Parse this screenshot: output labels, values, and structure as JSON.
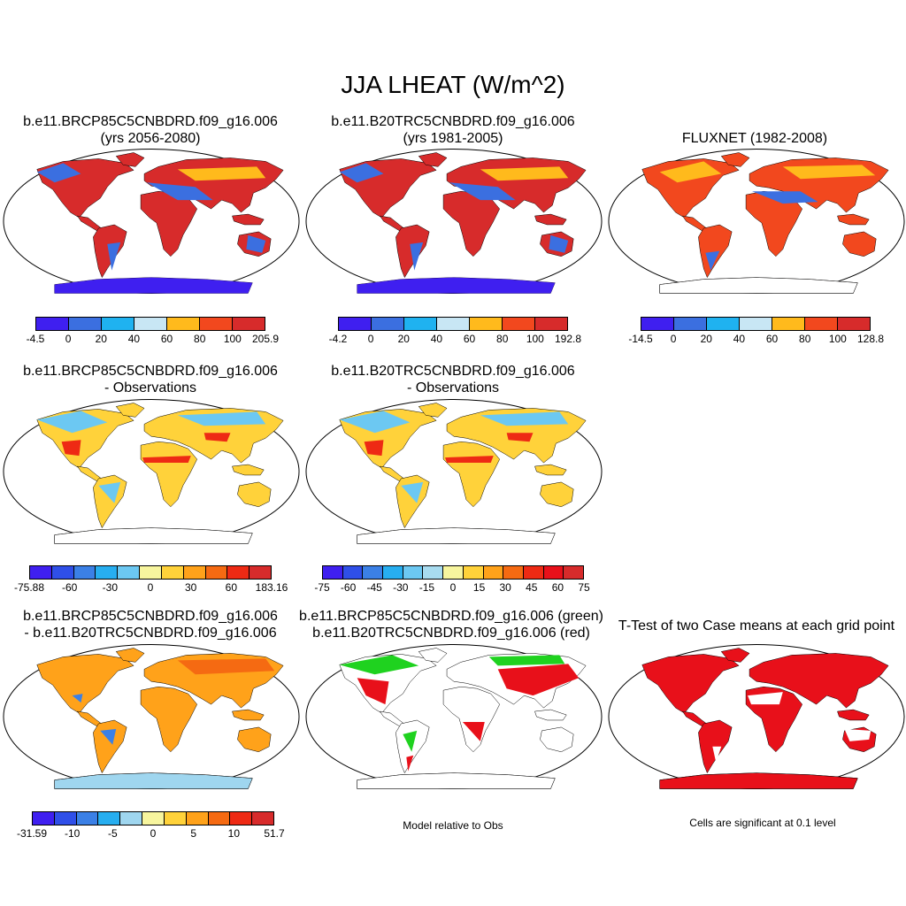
{
  "title": "JJA LHEAT (W/m^2)",
  "panels": {
    "p1": {
      "line1": "b.e11.BRCP85C5CNBDRD.f09_g16.006",
      "line2": "(yrs 2056-2080)"
    },
    "p2": {
      "line1": "b.e11.B20TRC5CNBDRD.f09_g16.006",
      "line2": "(yrs 1981-2005)"
    },
    "p3": {
      "line1": "FLUXNET (1982-2008)"
    },
    "p4": {
      "line1": "b.e11.BRCP85C5CNBDRD.f09_g16.006",
      "line2": "- Observations"
    },
    "p5": {
      "line1": "b.e11.B20TRC5CNBDRD.f09_g16.006",
      "line2": "- Observations"
    },
    "p7": {
      "line1": "b.e11.BRCP85C5CNBDRD.f09_g16.006",
      "line2": "- b.e11.B20TRC5CNBDRD.f09_g16.006"
    },
    "p8": {
      "line1": "b.e11.BRCP85C5CNBDRD.f09_g16.006 (green)",
      "line2": "b.e11.B20TRC5CNBDRD.f09_g16.006 (red)",
      "note": "Model relative to Obs"
    },
    "p9": {
      "line1": "T-Test of two Case means at each grid point",
      "note": "Cells are significant at 0.1 level"
    }
  },
  "colorbars": {
    "cb1": {
      "colors": [
        "#3f1ff0",
        "#3b6fe0",
        "#1fb2f0",
        "#c8e6f4",
        "#ffba1c",
        "#f2481e",
        "#d72b2b"
      ],
      "labels": [
        "-4.5",
        "0",
        "20",
        "40",
        "60",
        "80",
        "100",
        "205.9"
      ]
    },
    "cb2": {
      "colors": [
        "#3f1ff0",
        "#3b6fe0",
        "#1fb2f0",
        "#c8e6f4",
        "#ffba1c",
        "#f2481e",
        "#d72b2b"
      ],
      "labels": [
        "-4.2",
        "0",
        "20",
        "40",
        "60",
        "80",
        "100",
        "192.8"
      ]
    },
    "cb3": {
      "colors": [
        "#3f1ff0",
        "#3b6fe0",
        "#1fb2f0",
        "#c8e6f4",
        "#ffba1c",
        "#f2481e",
        "#d72b2b"
      ],
      "labels": [
        "-14.5",
        "0",
        "20",
        "40",
        "60",
        "80",
        "100",
        "128.8"
      ]
    },
    "cb4": {
      "colors": [
        "#3f1ff0",
        "#2f4fe8",
        "#3b80e6",
        "#27aef0",
        "#6cc8f2",
        "#f7f59e",
        "#ffd23a",
        "#ffa21a",
        "#f56a12",
        "#ee2a14",
        "#d72b2b"
      ],
      "labels": [
        "-75.88",
        "-60",
        "-30",
        "0",
        "30",
        "60",
        "183.16"
      ]
    },
    "cb5": {
      "colors": [
        "#3f1ff0",
        "#2f4fe8",
        "#3b80e6",
        "#27aef0",
        "#6cc8f2",
        "#a8dcf0",
        "#f7f59e",
        "#ffd23a",
        "#ffa21a",
        "#f56a12",
        "#ee2a14",
        "#e8101a",
        "#d72b2b"
      ],
      "labels": [
        "-75",
        "-60",
        "-45",
        "-30",
        "-15",
        "0",
        "15",
        "30",
        "45",
        "60",
        "75"
      ]
    },
    "cb7": {
      "colors": [
        "#3f1ff0",
        "#2f4fe8",
        "#3b80e6",
        "#27aef0",
        "#9fd6ef",
        "#f7f59e",
        "#ffd23a",
        "#ffa21a",
        "#f56a12",
        "#ee2a14",
        "#d72b2b"
      ],
      "labels": [
        "-31.59",
        "-10",
        "-5",
        "0",
        "5",
        "10",
        "51.7"
      ]
    }
  }
}
